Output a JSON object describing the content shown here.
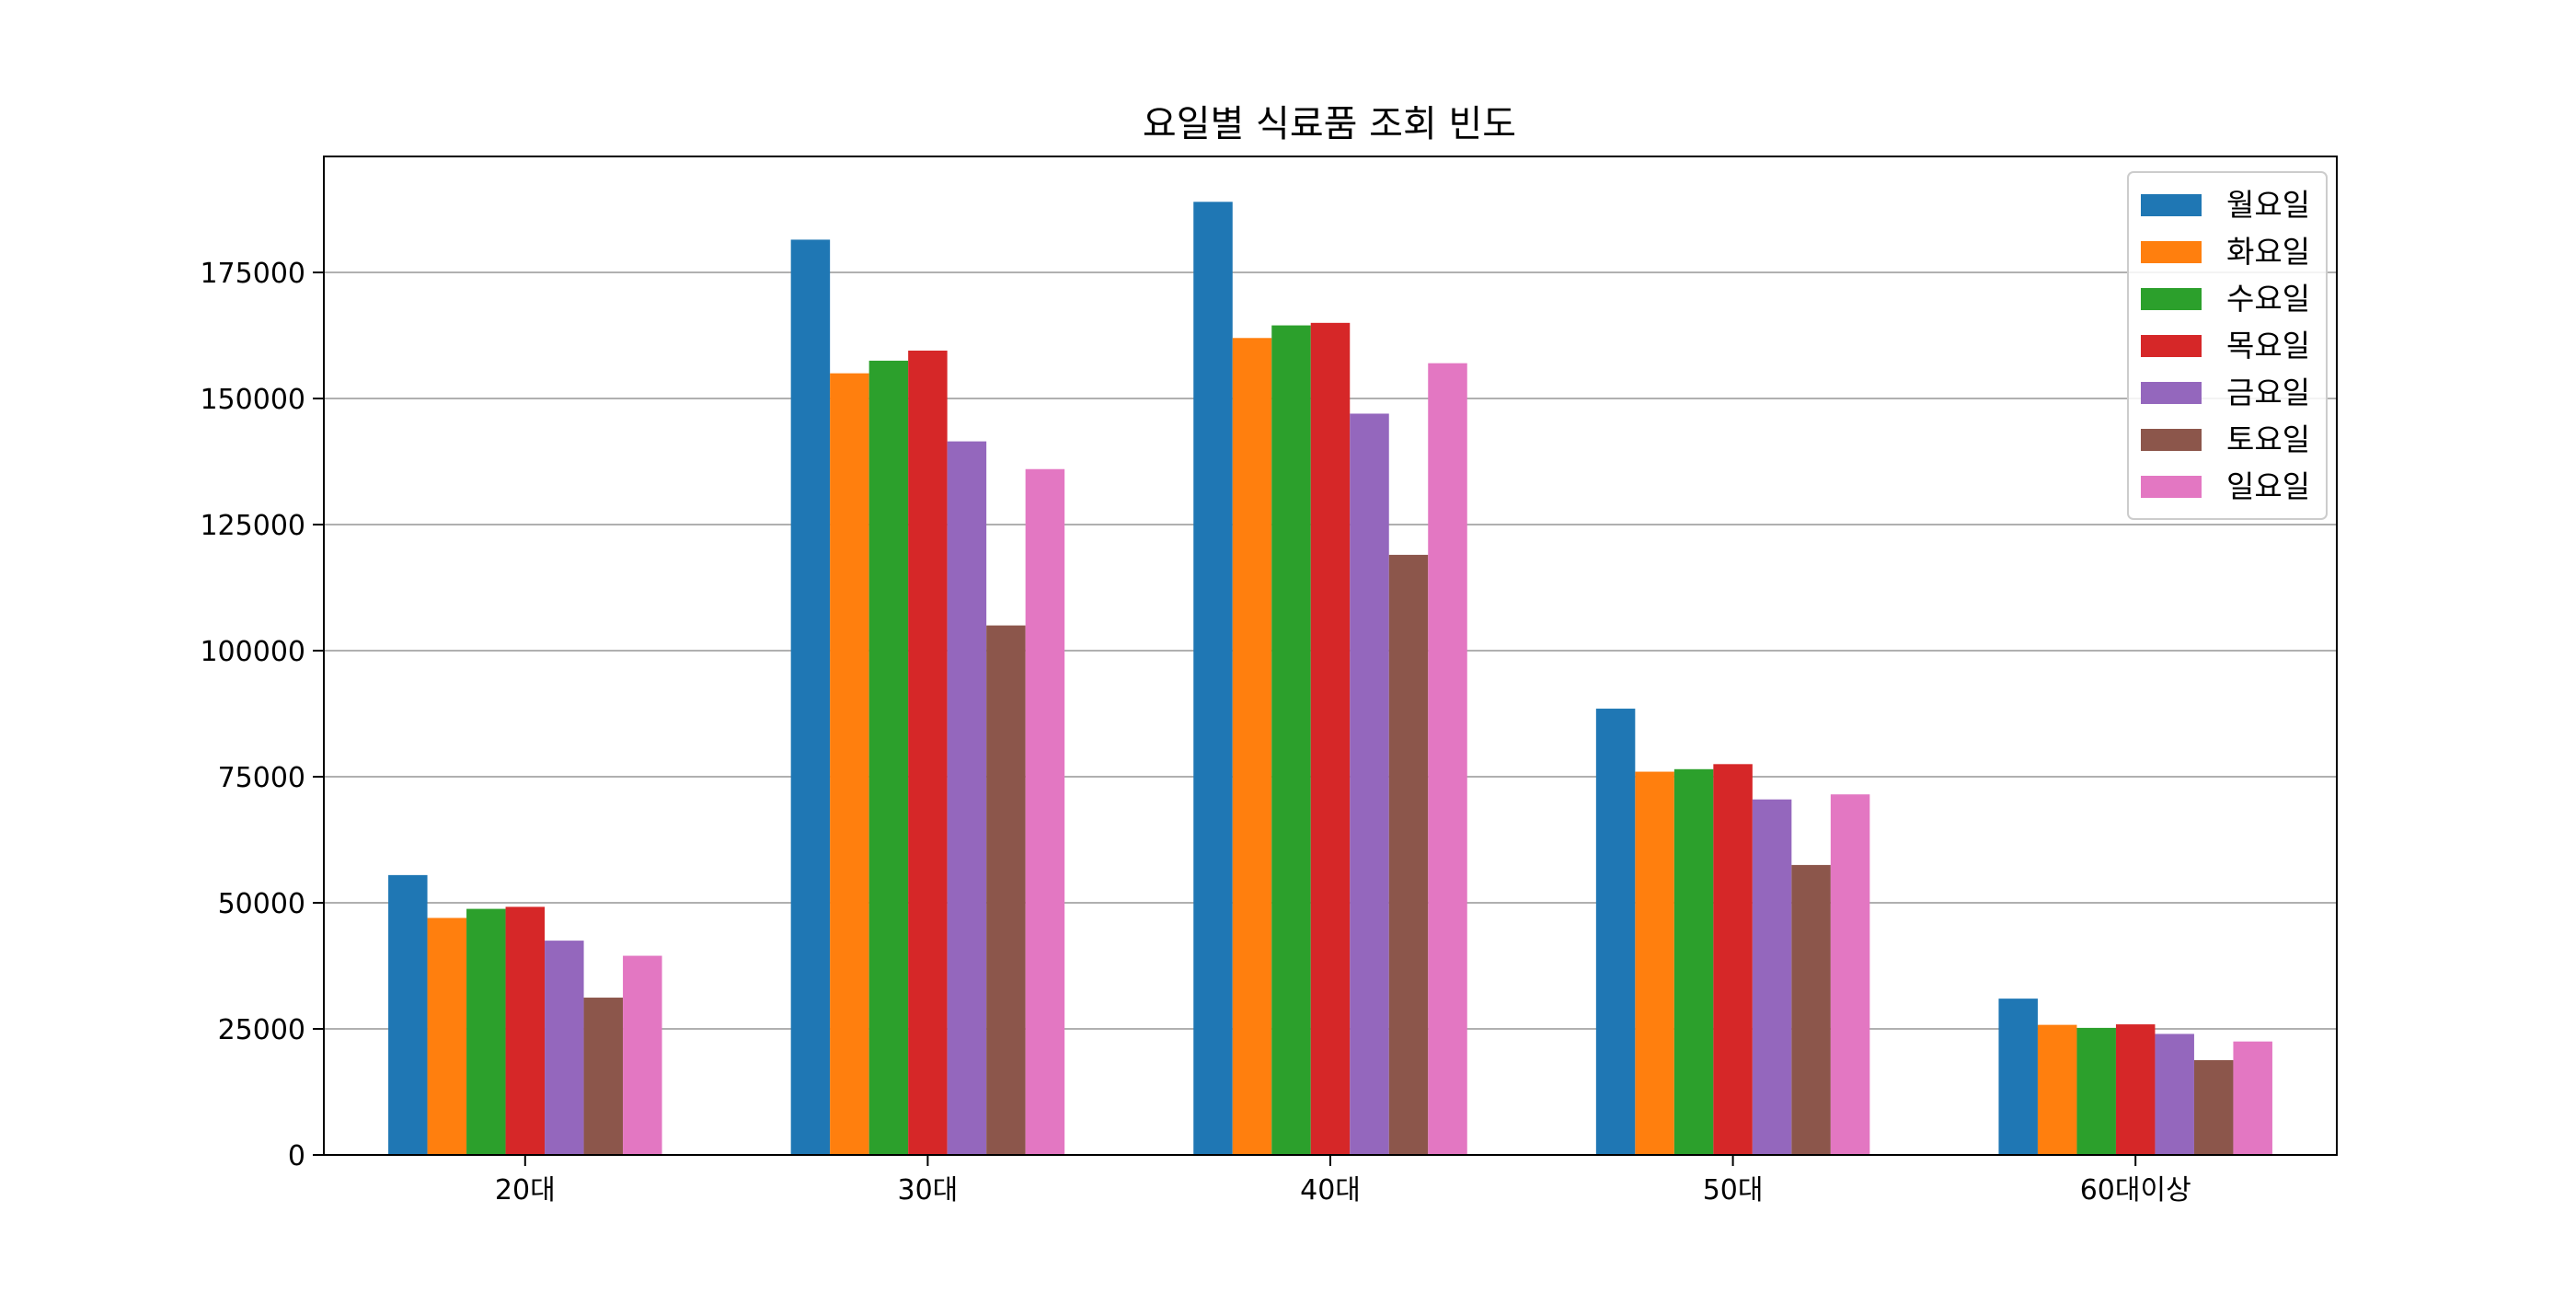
{
  "chart_data": {
    "type": "bar",
    "title": "요일별 식료품 조회 빈도",
    "xlabel": "",
    "ylabel": "",
    "categories": [
      "20대",
      "30대",
      "40대",
      "50대",
      "60대이상"
    ],
    "series": [
      {
        "name": "월요일",
        "color": "#1f77b4",
        "values": [
          55500,
          181500,
          189000,
          88500,
          31000
        ]
      },
      {
        "name": "화요일",
        "color": "#ff7f0e",
        "values": [
          47000,
          155000,
          162000,
          76000,
          25800
        ]
      },
      {
        "name": "수요일",
        "color": "#2ca02c",
        "values": [
          48800,
          157500,
          164500,
          76500,
          25200
        ]
      },
      {
        "name": "목요일",
        "color": "#d62728",
        "values": [
          49200,
          159500,
          165000,
          77500,
          25900
        ]
      },
      {
        "name": "금요일",
        "color": "#9467bd",
        "values": [
          42500,
          141500,
          147000,
          70500,
          24000
        ]
      },
      {
        "name": "토요일",
        "color": "#8c564b",
        "values": [
          31200,
          105000,
          119000,
          57500,
          18800
        ]
      },
      {
        "name": "일요일",
        "color": "#e377c2",
        "values": [
          39500,
          136000,
          157000,
          71500,
          22500
        ]
      }
    ],
    "ylim": [
      0,
      198000
    ],
    "yticks": [
      0,
      25000,
      50000,
      75000,
      100000,
      125000,
      150000,
      175000
    ],
    "ytick_labels": [
      "0",
      "25000",
      "50000",
      "75000",
      "100000",
      "125000",
      "150000",
      "175000"
    ],
    "grid": "horizontal",
    "legend_position": "top-right"
  }
}
